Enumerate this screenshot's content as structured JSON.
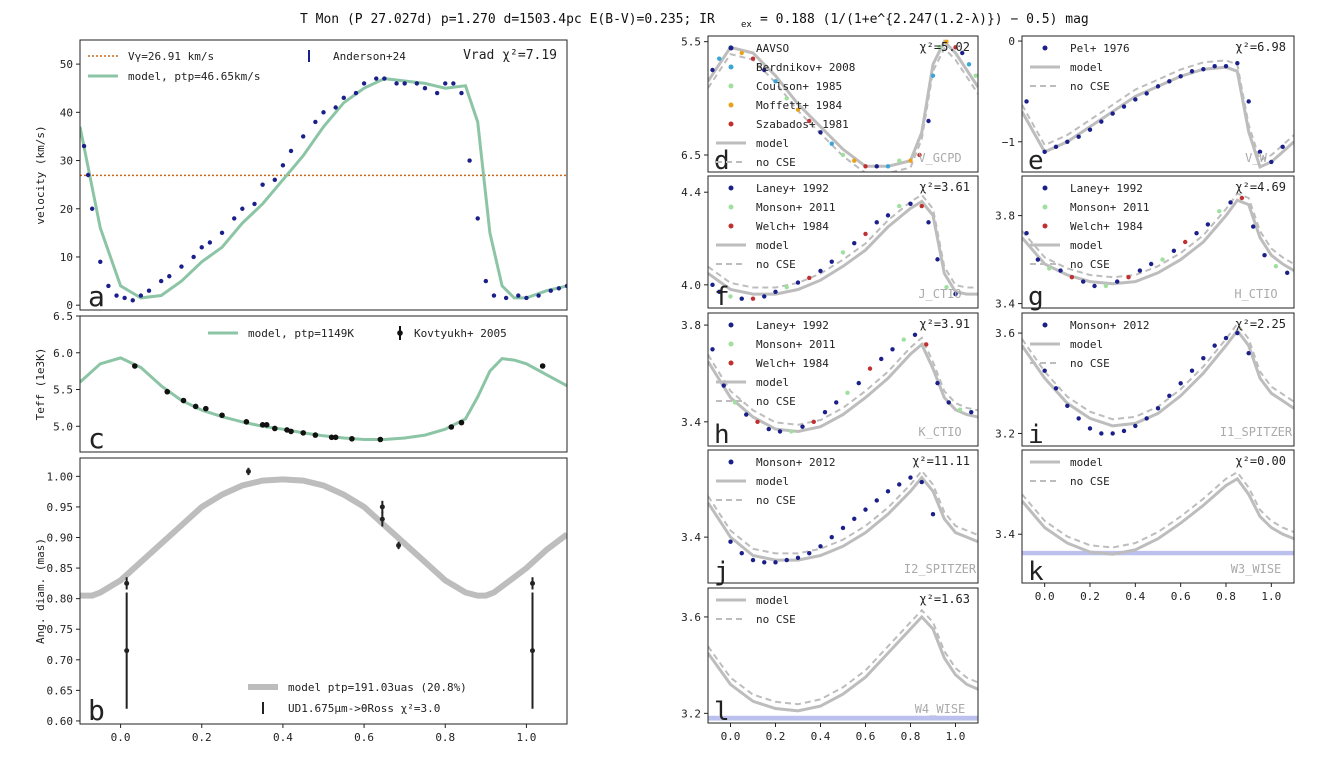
{
  "figure": {
    "title": "T Mon (P 27.027d) p=1.270 d=1503.4pc E(B-V)=0.235; IR",
    "title_sub": "ex",
    "title_tail": "= 0.188 (1/(1+e^{2.247(1.2-λ)}) − 0.5) mag"
  },
  "chart_data": [
    {
      "id": "a",
      "type": "line+scatter",
      "letter": "a",
      "ylabel": "velocity (km/s)",
      "xlim": [
        -0.1,
        1.1
      ],
      "ylim": [
        -1,
        55
      ],
      "yticks": [
        "0",
        "10",
        "20",
        "30",
        "40",
        "50"
      ],
      "title_right": "Vrad χ²=7.19",
      "legend": [
        "Vγ=26.91 km/s",
        "model, ptp=46.65km/s",
        "Anderson+24"
      ],
      "gamma": 26.91,
      "model_x": [
        -0.1,
        -0.05,
        0.0,
        0.05,
        0.1,
        0.15,
        0.2,
        0.25,
        0.3,
        0.35,
        0.4,
        0.45,
        0.5,
        0.55,
        0.6,
        0.65,
        0.7,
        0.75,
        0.8,
        0.85,
        0.88,
        0.91,
        0.94,
        0.97,
        1.0,
        1.05,
        1.1
      ],
      "model_y": [
        37,
        16,
        4,
        1.5,
        2,
        5,
        9,
        12,
        17,
        21,
        26,
        31,
        37,
        42,
        45,
        47,
        46.5,
        46,
        45,
        45.5,
        38,
        15,
        4,
        1.5,
        1.5,
        3,
        4
      ],
      "points_x": [
        -0.09,
        -0.08,
        -0.07,
        -0.05,
        -0.03,
        -0.01,
        0.01,
        0.03,
        0.05,
        0.07,
        0.1,
        0.12,
        0.15,
        0.18,
        0.2,
        0.22,
        0.25,
        0.28,
        0.3,
        0.33,
        0.35,
        0.38,
        0.4,
        0.42,
        0.45,
        0.48,
        0.5,
        0.53,
        0.55,
        0.58,
        0.6,
        0.63,
        0.65,
        0.68,
        0.7,
        0.73,
        0.75,
        0.78,
        0.8,
        0.82,
        0.84,
        0.86,
        0.88,
        0.9,
        0.92,
        0.95,
        0.98,
        1.0,
        1.03,
        1.06,
        1.08,
        1.1
      ],
      "points_y": [
        33,
        27,
        20,
        9,
        4,
        2,
        1.5,
        1,
        2,
        3,
        5,
        6,
        8,
        10,
        12,
        13,
        15,
        18,
        20,
        21,
        25,
        26,
        29,
        32,
        35,
        38,
        40,
        41,
        43,
        44,
        46,
        47,
        47,
        46,
        46,
        46,
        45,
        44,
        46,
        46,
        44,
        30,
        18,
        5,
        2,
        1.5,
        2,
        1.5,
        2,
        3,
        3.5,
        4
      ]
    },
    {
      "id": "c",
      "type": "line+scatter",
      "letter": "c",
      "ylabel": "Teff (1e3K)",
      "xlim": [
        -0.1,
        1.1
      ],
      "ylim": [
        4.65,
        6.5
      ],
      "yticks": [
        "5.0",
        "5.5",
        "6.0",
        "6.5"
      ],
      "legend": [
        "model, ptp=1149K",
        "Kovtyukh+ 2005"
      ],
      "model_x": [
        -0.1,
        -0.05,
        0.0,
        0.05,
        0.1,
        0.15,
        0.2,
        0.25,
        0.3,
        0.35,
        0.4,
        0.45,
        0.5,
        0.55,
        0.6,
        0.65,
        0.7,
        0.75,
        0.8,
        0.85,
        0.88,
        0.91,
        0.94,
        0.97,
        1.0,
        1.05,
        1.1
      ],
      "model_y": [
        5.6,
        5.85,
        5.93,
        5.8,
        5.55,
        5.35,
        5.22,
        5.13,
        5.06,
        5.0,
        4.96,
        4.91,
        4.87,
        4.84,
        4.82,
        4.82,
        4.84,
        4.88,
        4.96,
        5.1,
        5.4,
        5.75,
        5.92,
        5.9,
        5.85,
        5.7,
        5.55
      ],
      "points_x": [
        0.035,
        0.115,
        0.155,
        0.185,
        0.21,
        0.25,
        0.31,
        0.35,
        0.36,
        0.38,
        0.41,
        0.42,
        0.45,
        0.48,
        0.52,
        0.53,
        0.57,
        0.64,
        0.815,
        0.84,
        1.04
      ],
      "points_y": [
        5.82,
        5.47,
        5.35,
        5.27,
        5.24,
        5.15,
        5.06,
        5.02,
        5.02,
        4.97,
        4.95,
        4.93,
        4.91,
        4.88,
        4.85,
        4.85,
        4.83,
        4.82,
        4.99,
        5.05,
        5.82
      ]
    },
    {
      "id": "b",
      "type": "line+errorbar",
      "letter": "b",
      "ylabel": "Ang. diam. (mas)",
      "xlim": [
        -0.1,
        1.1
      ],
      "ylim": [
        0.595,
        1.03
      ],
      "yticks": [
        "0.60",
        "0.65",
        "0.70",
        "0.75",
        "0.80",
        "0.85",
        "0.90",
        "0.95",
        "1.00"
      ],
      "xticks": [
        "0.0",
        "0.2",
        "0.4",
        "0.6",
        "0.8",
        "1.0"
      ],
      "legend": [
        "model ptp=191.03uas (20.8%)",
        "UD1.675μm->θRoss χ²=3.0"
      ],
      "model_x": [
        -0.1,
        -0.07,
        -0.05,
        0.0,
        0.05,
        0.1,
        0.15,
        0.2,
        0.25,
        0.3,
        0.35,
        0.4,
        0.45,
        0.5,
        0.55,
        0.6,
        0.65,
        0.7,
        0.75,
        0.8,
        0.85,
        0.88,
        0.9,
        0.92,
        0.95,
        1.0,
        1.05,
        1.1
      ],
      "model_y": [
        0.805,
        0.805,
        0.81,
        0.83,
        0.86,
        0.89,
        0.92,
        0.95,
        0.97,
        0.985,
        0.993,
        0.995,
        0.993,
        0.985,
        0.97,
        0.95,
        0.92,
        0.89,
        0.86,
        0.83,
        0.81,
        0.805,
        0.805,
        0.81,
        0.825,
        0.85,
        0.88,
        0.905
      ],
      "points": [
        {
          "x": 0.015,
          "y": 0.825,
          "err": 0.01
        },
        {
          "x": 0.015,
          "y": 0.715,
          "err": 0.095
        },
        {
          "x": 0.315,
          "y": 1.008,
          "err": 0.006
        },
        {
          "x": 0.645,
          "y": 0.95,
          "err": 0.01
        },
        {
          "x": 0.645,
          "y": 0.93,
          "err": 0.012
        },
        {
          "x": 0.685,
          "y": 0.887,
          "err": 0.006
        },
        {
          "x": 1.015,
          "y": 0.825,
          "err": 0.01
        },
        {
          "x": 1.015,
          "y": 0.715,
          "err": 0.095
        }
      ]
    },
    {
      "id": "d",
      "type": "photometry",
      "letter": "d",
      "band": "V_GCPD",
      "chi2": "χ²=5.02",
      "ylim": [
        6.65,
        5.45
      ],
      "yticks": [
        "5.5",
        "6.5"
      ],
      "legend": [
        "AAVSO",
        "Berdnikov+ 2008",
        "Coulson+ 1985",
        "Moffett+ 1984",
        "Szabados+ 1981",
        "model",
        "no CSE"
      ],
      "model_x": [
        -0.1,
        0.0,
        0.1,
        0.2,
        0.3,
        0.4,
        0.5,
        0.6,
        0.7,
        0.8,
        0.85,
        0.9,
        0.95,
        1.0,
        1.05,
        1.1
      ],
      "model_y": [
        5.85,
        5.55,
        5.6,
        5.8,
        6.05,
        6.25,
        6.45,
        6.6,
        6.6,
        6.55,
        6.3,
        5.7,
        5.5,
        5.6,
        5.75,
        5.9
      ],
      "points_x": [
        -0.08,
        -0.05,
        0.0,
        0.05,
        0.1,
        0.15,
        0.2,
        0.25,
        0.3,
        0.35,
        0.4,
        0.45,
        0.5,
        0.55,
        0.6,
        0.65,
        0.7,
        0.75,
        0.8,
        0.84,
        0.88,
        0.9,
        0.93,
        0.96,
        1.0,
        1.03,
        1.06,
        1.09
      ],
      "points_y": [
        5.75,
        5.65,
        5.55,
        5.6,
        5.65,
        5.75,
        5.85,
        6.0,
        6.1,
        6.2,
        6.3,
        6.4,
        6.5,
        6.55,
        6.6,
        6.6,
        6.6,
        6.55,
        6.55,
        6.5,
        6.2,
        5.8,
        5.55,
        5.5,
        5.55,
        5.6,
        5.7,
        5.8
      ]
    },
    {
      "id": "e",
      "type": "photometry",
      "letter": "e",
      "band": "V_W",
      "chi2": "χ²=6.98",
      "ylim": [
        -1.3,
        0.05
      ],
      "yticks": [
        "0",
        "−1"
      ],
      "legend": [
        "Pel+ 1976",
        "model",
        "no CSE"
      ],
      "model_x": [
        -0.1,
        0.0,
        0.1,
        0.2,
        0.3,
        0.4,
        0.5,
        0.6,
        0.7,
        0.8,
        0.85,
        0.9,
        0.95,
        1.0,
        1.05,
        1.1
      ],
      "model_y": [
        -0.7,
        -1.1,
        -1.0,
        -0.85,
        -0.7,
        -0.55,
        -0.45,
        -0.35,
        -0.28,
        -0.26,
        -0.3,
        -0.9,
        -1.25,
        -1.2,
        -1.1,
        -1.0
      ],
      "points_x": [
        -0.08,
        0.0,
        0.05,
        0.1,
        0.15,
        0.2,
        0.25,
        0.3,
        0.35,
        0.4,
        0.45,
        0.5,
        0.55,
        0.6,
        0.65,
        0.7,
        0.75,
        0.8,
        0.85,
        0.9,
        0.95,
        1.0,
        1.05
      ],
      "points_y": [
        -0.6,
        -1.1,
        -1.05,
        -1.0,
        -0.95,
        -0.88,
        -0.8,
        -0.72,
        -0.65,
        -0.58,
        -0.52,
        -0.45,
        -0.4,
        -0.35,
        -0.3,
        -0.28,
        -0.25,
        -0.25,
        -0.22,
        -0.6,
        -1.1,
        -1.2,
        -1.05
      ]
    },
    {
      "id": "f",
      "type": "photometry",
      "letter": "f",
      "band": "J_CTIO",
      "chi2": "χ²=3.61",
      "ylim": [
        3.9,
        4.47
      ],
      "yticks": [
        "4.0",
        "4.4"
      ],
      "legend": [
        "Laney+ 1992",
        "Monson+ 2011",
        "Welch+ 1984",
        "model",
        "no CSE"
      ],
      "model_x": [
        -0.1,
        0.0,
        0.1,
        0.2,
        0.3,
        0.4,
        0.5,
        0.6,
        0.7,
        0.8,
        0.85,
        0.9,
        0.95,
        1.0,
        1.05,
        1.1
      ],
      "model_y": [
        4.05,
        3.98,
        3.96,
        3.96,
        3.98,
        4.02,
        4.08,
        4.15,
        4.25,
        4.33,
        4.36,
        4.3,
        4.05,
        3.97,
        3.96,
        3.96
      ],
      "points_x": [
        -0.08,
        -0.05,
        0.0,
        0.05,
        0.1,
        0.15,
        0.2,
        0.25,
        0.3,
        0.35,
        0.4,
        0.45,
        0.5,
        0.55,
        0.6,
        0.65,
        0.7,
        0.75,
        0.8,
        0.85,
        0.88,
        0.92,
        0.96,
        1.0
      ],
      "points_y": [
        4.0,
        3.97,
        3.95,
        3.94,
        3.94,
        3.95,
        3.97,
        3.99,
        4.01,
        4.03,
        4.06,
        4.1,
        4.14,
        4.18,
        4.22,
        4.27,
        4.3,
        4.34,
        4.35,
        4.34,
        4.27,
        4.11,
        3.99,
        3.96
      ]
    },
    {
      "id": "g",
      "type": "photometry",
      "letter": "g",
      "band": "H_CTIO",
      "chi2": "χ²=4.69",
      "ylim": [
        3.38,
        3.98
      ],
      "yticks": [
        "3.4",
        "3.8"
      ],
      "legend": [
        "Laney+ 1992",
        "Monson+ 2011",
        "Welch+ 1984",
        "model",
        "no CSE"
      ],
      "model_x": [
        -0.1,
        0.0,
        0.1,
        0.2,
        0.3,
        0.4,
        0.5,
        0.6,
        0.7,
        0.8,
        0.85,
        0.9,
        0.95,
        1.0,
        1.05,
        1.1
      ],
      "model_y": [
        3.7,
        3.58,
        3.53,
        3.5,
        3.49,
        3.5,
        3.54,
        3.6,
        3.68,
        3.8,
        3.87,
        3.85,
        3.7,
        3.62,
        3.58,
        3.55
      ],
      "points_x": [
        -0.08,
        -0.03,
        0.02,
        0.07,
        0.12,
        0.17,
        0.22,
        0.27,
        0.32,
        0.37,
        0.42,
        0.47,
        0.52,
        0.57,
        0.62,
        0.67,
        0.72,
        0.77,
        0.82,
        0.87,
        0.92,
        0.97,
        1.02,
        1.07
      ],
      "points_y": [
        3.72,
        3.6,
        3.56,
        3.55,
        3.52,
        3.5,
        3.48,
        3.48,
        3.5,
        3.52,
        3.55,
        3.58,
        3.6,
        3.64,
        3.68,
        3.72,
        3.76,
        3.82,
        3.86,
        3.88,
        3.75,
        3.62,
        3.57,
        3.54
      ]
    },
    {
      "id": "h",
      "type": "photometry",
      "letter": "h",
      "band": "K_CTIO",
      "chi2": "χ²=3.91",
      "ylim": [
        3.3,
        3.85
      ],
      "yticks": [
        "3.4",
        "3.8"
      ],
      "legend": [
        "Laney+ 1992",
        "Monson+ 2011",
        "Welch+ 1984",
        "model",
        "no CSE"
      ],
      "model_x": [
        -0.1,
        0.0,
        0.1,
        0.2,
        0.3,
        0.4,
        0.5,
        0.6,
        0.7,
        0.8,
        0.85,
        0.9,
        0.95,
        1.0,
        1.05,
        1.1
      ],
      "model_y": [
        3.65,
        3.5,
        3.42,
        3.37,
        3.36,
        3.38,
        3.43,
        3.5,
        3.58,
        3.68,
        3.72,
        3.62,
        3.5,
        3.45,
        3.43,
        3.42
      ],
      "points_x": [
        -0.08,
        -0.03,
        0.02,
        0.07,
        0.12,
        0.17,
        0.22,
        0.27,
        0.32,
        0.37,
        0.42,
        0.47,
        0.52,
        0.57,
        0.62,
        0.67,
        0.72,
        0.77,
        0.82,
        0.87,
        0.92,
        0.97,
        1.02,
        1.07
      ],
      "points_y": [
        3.7,
        3.55,
        3.48,
        3.43,
        3.4,
        3.37,
        3.36,
        3.36,
        3.38,
        3.4,
        3.44,
        3.48,
        3.52,
        3.56,
        3.62,
        3.66,
        3.7,
        3.74,
        3.76,
        3.72,
        3.56,
        3.48,
        3.45,
        3.44
      ]
    },
    {
      "id": "i",
      "type": "photometry",
      "letter": "i",
      "band": "I1_SPITZER",
      "chi2": "χ²=2.25",
      "ylim": [
        3.15,
        3.68
      ],
      "yticks": [
        "3.2",
        "3.6"
      ],
      "legend": [
        "Monson+ 2012",
        "model",
        "no CSE"
      ],
      "model_x": [
        -0.1,
        0.0,
        0.1,
        0.2,
        0.3,
        0.4,
        0.5,
        0.6,
        0.7,
        0.8,
        0.85,
        0.9,
        0.95,
        1.0,
        1.05,
        1.1
      ],
      "model_y": [
        3.55,
        3.42,
        3.32,
        3.26,
        3.23,
        3.24,
        3.28,
        3.35,
        3.44,
        3.55,
        3.61,
        3.55,
        3.42,
        3.36,
        3.33,
        3.3
      ],
      "points_x": [
        0.0,
        0.05,
        0.1,
        0.15,
        0.2,
        0.25,
        0.3,
        0.35,
        0.4,
        0.45,
        0.5,
        0.55,
        0.6,
        0.65,
        0.7,
        0.75,
        0.8,
        0.85,
        0.9
      ],
      "points_y": [
        3.45,
        3.38,
        3.31,
        3.26,
        3.22,
        3.2,
        3.2,
        3.21,
        3.23,
        3.26,
        3.3,
        3.35,
        3.4,
        3.45,
        3.5,
        3.55,
        3.58,
        3.6,
        3.52
      ]
    },
    {
      "id": "j",
      "type": "photometry",
      "letter": "j",
      "band": "I2_SPITZER",
      "chi2": "χ²=11.11",
      "ylim": [
        3.2,
        3.78
      ],
      "yticks": [
        "3.4"
      ],
      "legend": [
        "Monson+ 2012",
        "model",
        "no CSE"
      ],
      "model_x": [
        -0.1,
        0.0,
        0.1,
        0.2,
        0.3,
        0.4,
        0.5,
        0.6,
        0.7,
        0.8,
        0.85,
        0.9,
        0.95,
        1.0,
        1.05,
        1.1
      ],
      "model_y": [
        3.55,
        3.4,
        3.32,
        3.3,
        3.3,
        3.32,
        3.36,
        3.42,
        3.5,
        3.6,
        3.66,
        3.6,
        3.48,
        3.42,
        3.4,
        3.38
      ],
      "points_x": [
        0.0,
        0.05,
        0.1,
        0.15,
        0.2,
        0.25,
        0.3,
        0.35,
        0.4,
        0.45,
        0.5,
        0.55,
        0.6,
        0.65,
        0.7,
        0.75,
        0.8,
        0.85,
        0.9
      ],
      "points_y": [
        3.38,
        3.33,
        3.3,
        3.29,
        3.29,
        3.3,
        3.31,
        3.33,
        3.36,
        3.4,
        3.44,
        3.48,
        3.52,
        3.56,
        3.6,
        3.63,
        3.66,
        3.64,
        3.5
      ]
    },
    {
      "id": "k",
      "type": "photometry",
      "letter": "k",
      "band": "W3_WISE",
      "chi2": "χ²=0.00",
      "ylim": [
        3.18,
        3.78
      ],
      "yticks": [
        "3.4"
      ],
      "legend": [
        "model",
        "no CSE"
      ],
      "band_y": [
        3.305,
        3.325
      ],
      "model_x": [
        -0.1,
        0.0,
        0.1,
        0.2,
        0.3,
        0.4,
        0.5,
        0.6,
        0.7,
        0.8,
        0.85,
        0.9,
        0.95,
        1.0,
        1.05,
        1.1
      ],
      "model_y": [
        3.55,
        3.43,
        3.36,
        3.32,
        3.31,
        3.33,
        3.38,
        3.45,
        3.53,
        3.62,
        3.65,
        3.58,
        3.48,
        3.43,
        3.4,
        3.38
      ],
      "points_x": [],
      "points_y": []
    },
    {
      "id": "l",
      "type": "photometry",
      "letter": "l",
      "band": "W4_WISE",
      "chi2": "χ²=1.63",
      "ylim": [
        3.16,
        3.72
      ],
      "yticks": [
        "3.2",
        "3.6"
      ],
      "xticks": [
        "0.0",
        "0.2",
        "0.4",
        "0.6",
        "0.8",
        "1.0"
      ],
      "legend": [
        "model",
        "no CSE"
      ],
      "band_y": [
        3.17,
        3.19
      ],
      "model_x": [
        -0.1,
        0.0,
        0.1,
        0.2,
        0.3,
        0.4,
        0.5,
        0.6,
        0.7,
        0.8,
        0.85,
        0.9,
        0.95,
        1.0,
        1.05,
        1.1
      ],
      "model_y": [
        3.45,
        3.32,
        3.25,
        3.22,
        3.21,
        3.23,
        3.28,
        3.35,
        3.45,
        3.55,
        3.6,
        3.55,
        3.43,
        3.36,
        3.32,
        3.3
      ],
      "points_x": [],
      "points_y": []
    }
  ],
  "bottom_ticks_right": [
    "0.0",
    "0.2",
    "0.4",
    "0.6",
    "0.8",
    "1.0"
  ],
  "colors": {
    "green": "#8cc5a5",
    "gray": "#bdbdbd",
    "navy": "#1a1f8a",
    "orange": "#cc6a1a"
  }
}
